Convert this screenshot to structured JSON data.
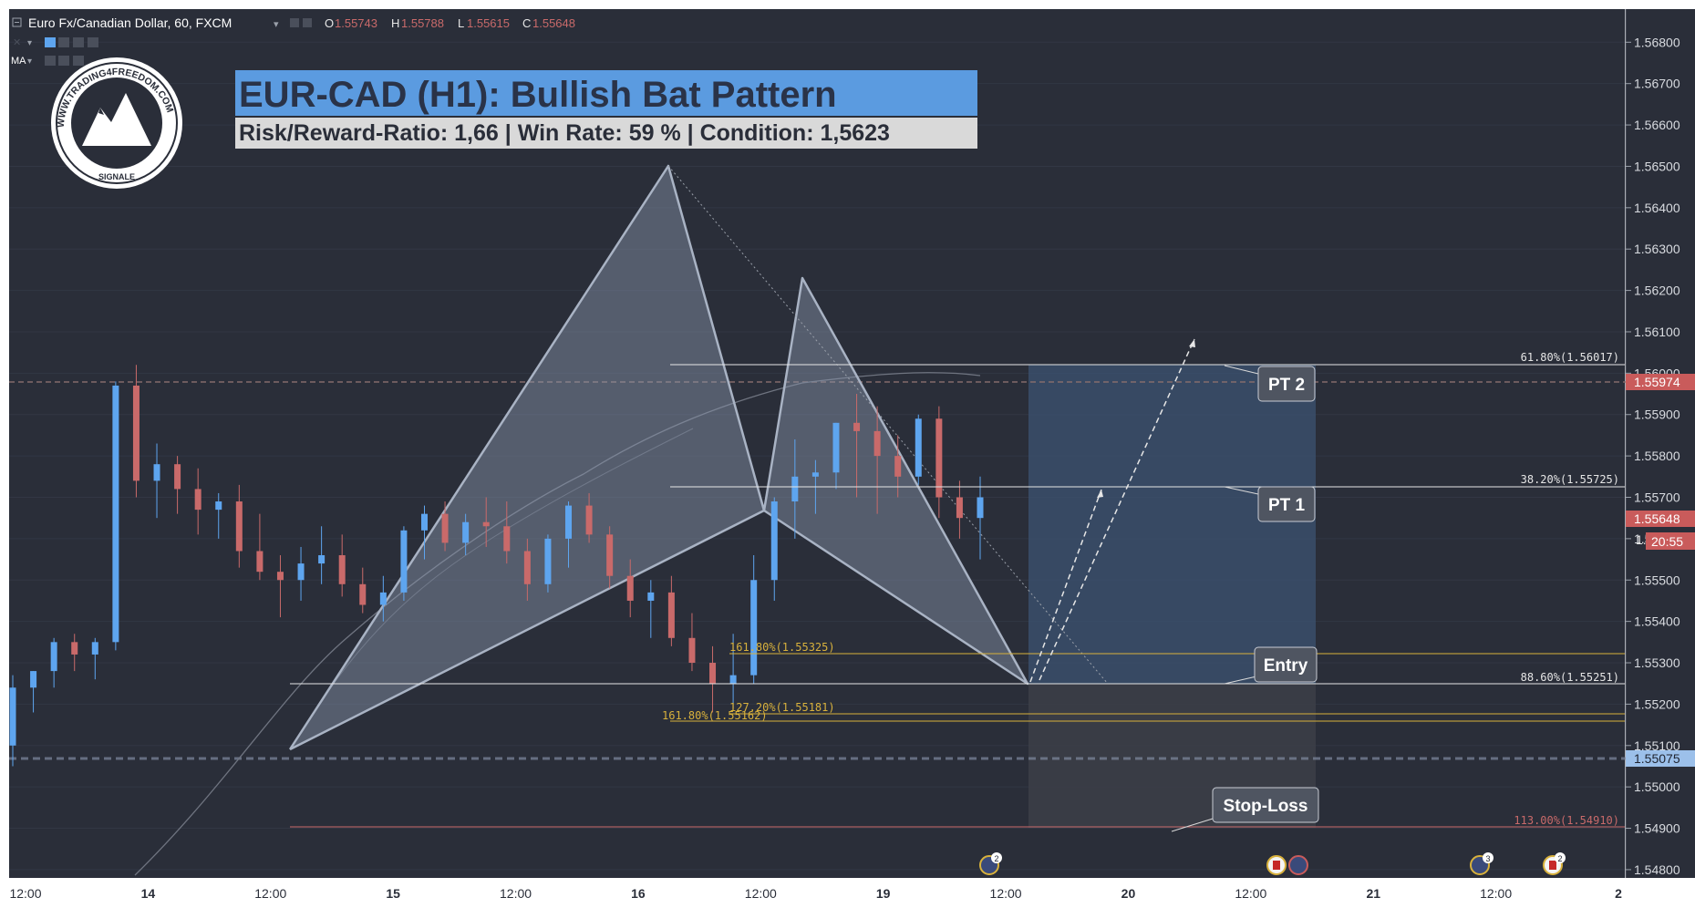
{
  "symbol": {
    "name": "Euro Fx/Canadian Dollar, 60, FXCM",
    "open_label": "O",
    "open": "1.55743",
    "high_label": "H",
    "high": "1.55788",
    "low_label": "L",
    "low": "1.55615",
    "close_label": "C",
    "close": "1.55648",
    "ma_label": "MA"
  },
  "logo": {
    "text_top": "WWW.TRADING4FREEDOM.COM",
    "text_bottom": "SIGNALE"
  },
  "banner": {
    "title": "EUR-CAD (H1): Bullish Bat Pattern",
    "subtitle": "Risk/Reward-Ratio: 1,66 | Win Rate: 59 % | Condition: 1,5623",
    "title_bg": "#5b9be0",
    "subtitle_bg": "#d9d9d9"
  },
  "colors": {
    "background": "#2a2e39",
    "up_candle": "#5ea5ef",
    "down_candle": "#c96a6a",
    "fib_white": "#e6e6e6",
    "fib_yellow": "#d8b13c",
    "fib_red": "#c96a6a",
    "pattern_fill": "#8a97ad",
    "target_zone": "#3c5372",
    "stop_zone": "#3b3e47",
    "price_tag_red": "#c95b5b",
    "price_tag_blue": "#9cc0ea"
  },
  "price_axis": {
    "ticks": [
      "1.56800",
      "1.56700",
      "1.56600",
      "1.56500",
      "1.56400",
      "1.56300",
      "1.56200",
      "1.56100",
      "1.56000",
      "1.55900",
      "1.55800",
      "1.55700",
      "1.55600",
      "1.55500",
      "1.55400",
      "1.55300",
      "1.55200",
      "1.55100",
      "1.55000",
      "1.54900",
      "1.54800"
    ],
    "tags": {
      "tag_1": "1.55974",
      "tag_2": "1.55648",
      "tag_3": "20:55",
      "tag_4": "1.55075"
    },
    "partial_label": "1."
  },
  "time_axis": {
    "labels": [
      "12:00",
      "14",
      "12:00",
      "15",
      "12:00",
      "16",
      "12:00",
      "19",
      "12:00",
      "20",
      "12:00",
      "21",
      "12:00",
      "2"
    ]
  },
  "fib_levels": {
    "fib_61": "61.80%(1.56017)",
    "fib_38": "38.20%(1.55725)",
    "fib_161a": "161.80%(1.55325)",
    "fib_886": "88.60%(1.55251)",
    "fib_127": "127.20%(1.55181)",
    "fib_161b": "161.80%(1.55162)",
    "fib_113": "113.00%(1.54910)"
  },
  "callouts": {
    "pt2": "PT 2",
    "pt1": "PT 1",
    "entry": "Entry",
    "stop": "Stop-Loss"
  },
  "events": {
    "badge_1": "2",
    "badge_2": "3",
    "badge_3": "2"
  },
  "chart_data": {
    "type": "candlestick",
    "title": "EUR-CAD (H1): Bullish Bat Pattern",
    "xlabel": "",
    "ylabel": "",
    "ylim": [
      1.5478,
      1.5688
    ],
    "x_tick_labels": [
      "12:00",
      "14",
      "12:00",
      "15",
      "12:00",
      "16",
      "12:00",
      "19",
      "12:00",
      "20",
      "12:00",
      "21",
      "12:00",
      "2"
    ],
    "y_tick_labels": [
      "1.56800",
      "1.56700",
      "1.56600",
      "1.56500",
      "1.56400",
      "1.56300",
      "1.56200",
      "1.56100",
      "1.56000",
      "1.55900",
      "1.55800",
      "1.55700",
      "1.55600",
      "1.55500",
      "1.55400",
      "1.55300",
      "1.55200",
      "1.55100",
      "1.55000",
      "1.54900",
      "1.54800"
    ],
    "candles_ohlc": [
      [
        1.551,
        1.5527,
        1.5505,
        1.5524
      ],
      [
        1.5524,
        1.5528,
        1.5518,
        1.5528
      ],
      [
        1.5528,
        1.5536,
        1.5524,
        1.5535
      ],
      [
        1.5535,
        1.5537,
        1.5528,
        1.5532
      ],
      [
        1.5532,
        1.5536,
        1.5526,
        1.5535
      ],
      [
        1.5535,
        1.5598,
        1.5533,
        1.5597
      ],
      [
        1.5597,
        1.5602,
        1.557,
        1.5574
      ],
      [
        1.5574,
        1.5583,
        1.5565,
        1.5578
      ],
      [
        1.5578,
        1.558,
        1.5566,
        1.5572
      ],
      [
        1.5572,
        1.5577,
        1.5561,
        1.5567
      ],
      [
        1.5567,
        1.5571,
        1.556,
        1.5569
      ],
      [
        1.5569,
        1.5573,
        1.5553,
        1.5557
      ],
      [
        1.5557,
        1.5566,
        1.555,
        1.5552
      ],
      [
        1.5552,
        1.5556,
        1.5541,
        1.555
      ],
      [
        1.555,
        1.5558,
        1.5545,
        1.5554
      ],
      [
        1.5554,
        1.5563,
        1.5549,
        1.5556
      ],
      [
        1.5556,
        1.5561,
        1.5546,
        1.5549
      ],
      [
        1.5549,
        1.5553,
        1.5542,
        1.5544
      ],
      [
        1.5544,
        1.5551,
        1.554,
        1.5547
      ],
      [
        1.5547,
        1.5563,
        1.5545,
        1.5562
      ],
      [
        1.5562,
        1.5568,
        1.5555,
        1.5566
      ],
      [
        1.5566,
        1.5569,
        1.5557,
        1.5559
      ],
      [
        1.5559,
        1.5566,
        1.5556,
        1.5564
      ],
      [
        1.5564,
        1.557,
        1.5558,
        1.5563
      ],
      [
        1.5563,
        1.5569,
        1.5554,
        1.5557
      ],
      [
        1.5557,
        1.556,
        1.5545,
        1.5549
      ],
      [
        1.5549,
        1.5561,
        1.5547,
        1.556
      ],
      [
        1.556,
        1.5569,
        1.5553,
        1.5568
      ],
      [
        1.5568,
        1.5571,
        1.5559,
        1.5561
      ],
      [
        1.5561,
        1.5563,
        1.5548,
        1.5551
      ],
      [
        1.5551,
        1.5555,
        1.5541,
        1.5545
      ],
      [
        1.5545,
        1.555,
        1.5536,
        1.5547
      ],
      [
        1.5547,
        1.5551,
        1.5534,
        1.5536
      ],
      [
        1.5536,
        1.5542,
        1.5528,
        1.553
      ],
      [
        1.553,
        1.5534,
        1.5518,
        1.5525
      ],
      [
        1.5525,
        1.5537,
        1.5519,
        1.5527
      ],
      [
        1.5527,
        1.5556,
        1.5525,
        1.555
      ],
      [
        1.555,
        1.557,
        1.5545,
        1.5569
      ],
      [
        1.5569,
        1.5584,
        1.556,
        1.5575
      ],
      [
        1.5575,
        1.5579,
        1.5566,
        1.5576
      ],
      [
        1.5576,
        1.5588,
        1.5572,
        1.5588
      ],
      [
        1.5588,
        1.5595,
        1.557,
        1.5586
      ],
      [
        1.5586,
        1.5592,
        1.5566,
        1.558
      ],
      [
        1.558,
        1.5585,
        1.557,
        1.5575
      ],
      [
        1.5575,
        1.559,
        1.5573,
        1.5589
      ],
      [
        1.5589,
        1.5592,
        1.5565,
        1.557
      ],
      [
        1.557,
        1.5574,
        1.556,
        1.5565
      ],
      [
        1.5565,
        1.5575,
        1.5555,
        1.557
      ]
    ],
    "pattern_points": {
      "X": 1.551,
      "A": 1.5649,
      "B": 1.5567,
      "C": 1.5622,
      "D": 1.5525
    },
    "fib_level_values": [
      1.56017,
      1.55725,
      1.55325,
      1.55251,
      1.55181,
      1.55162,
      1.5491
    ],
    "horizontal_levels": [
      1.55974,
      1.55075
    ],
    "last_price": 1.55648
  }
}
